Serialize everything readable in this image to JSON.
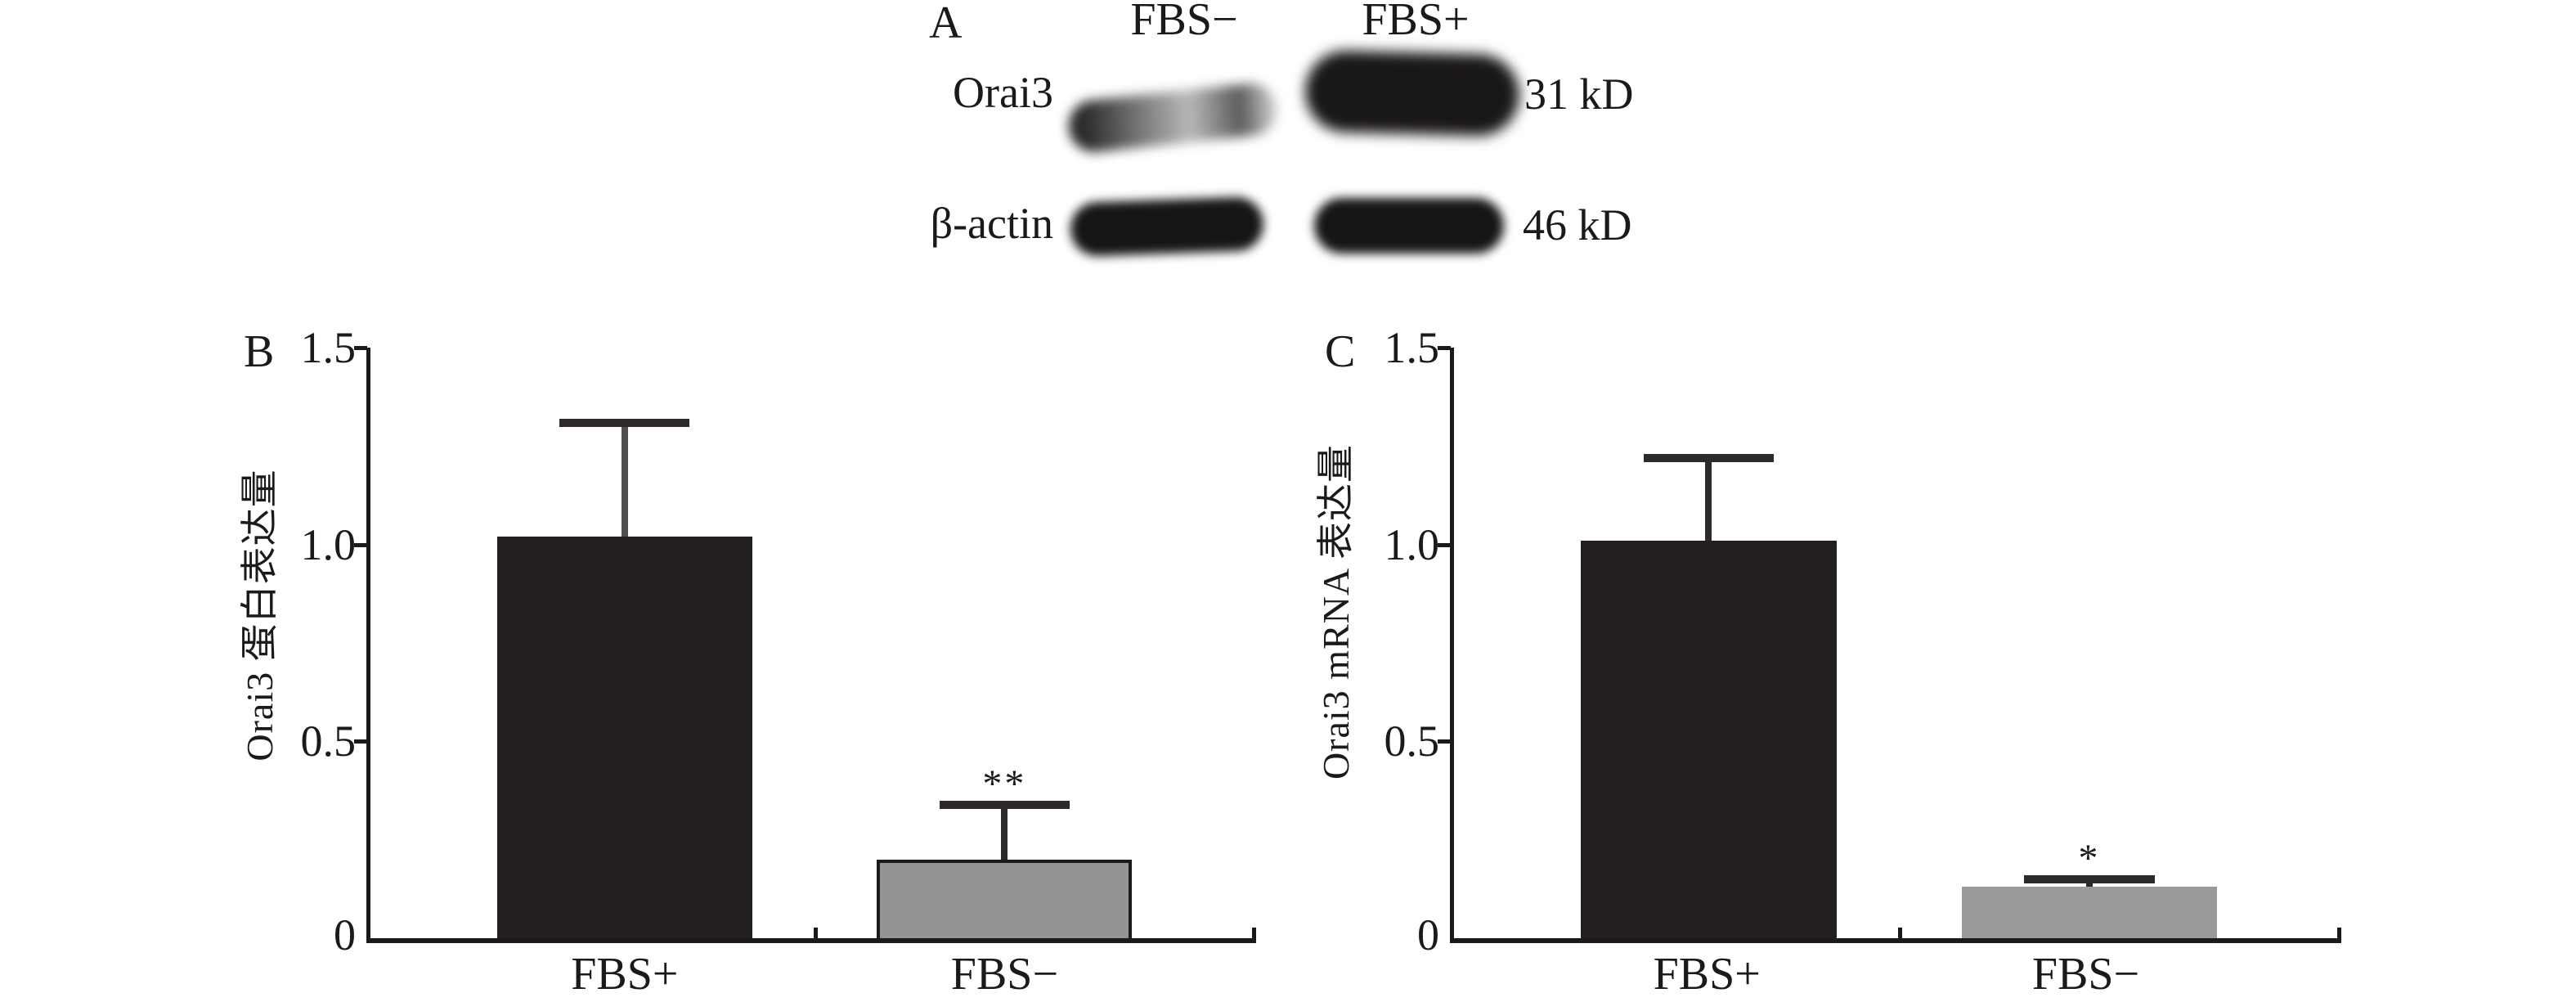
{
  "panel_a": {
    "label": "A",
    "lane_headers": [
      "FBS−",
      "FBS+"
    ],
    "rows": [
      {
        "protein": "Orai3",
        "weight": "31 kD"
      },
      {
        "protein": "β-actin",
        "weight": "46 kD"
      }
    ]
  },
  "chart_data": [
    {
      "panel_label": "B",
      "type": "bar",
      "title": "",
      "xlabel": "",
      "ylabel": "Orai3 蛋白表达量",
      "categories": [
        "FBS+",
        "FBS−"
      ],
      "values": [
        1.02,
        0.2
      ],
      "error_top": [
        1.32,
        0.35
      ],
      "significance": [
        "",
        "**"
      ],
      "ylim": [
        0,
        1.5
      ],
      "yticks": [
        "0",
        "0.5",
        "1.0",
        "1.5"
      ],
      "bar_colors": [
        "#231f20",
        "#949494"
      ],
      "bar_outline": [
        false,
        true
      ],
      "error_colors": [
        "#505052",
        "#2b2b2b"
      ],
      "grid": false,
      "legend": false
    },
    {
      "panel_label": "C",
      "type": "bar",
      "title": "",
      "xlabel": "",
      "ylabel": "Orai3 mRNA 表达量",
      "categories": [
        "FBS+",
        "FBS−"
      ],
      "values": [
        1.01,
        0.13
      ],
      "error_top": [
        1.23,
        0.16
      ],
      "significance": [
        "",
        "*"
      ],
      "ylim": [
        0,
        1.5
      ],
      "yticks": [
        "0",
        "0.5",
        "1.0",
        "1.5"
      ],
      "bar_colors": [
        "#231f20",
        "#9a9a9a"
      ],
      "bar_outline": [
        false,
        false
      ],
      "error_colors": [
        "#2b2b2b",
        "#2b2b2b"
      ],
      "grid": false,
      "legend": false
    }
  ]
}
